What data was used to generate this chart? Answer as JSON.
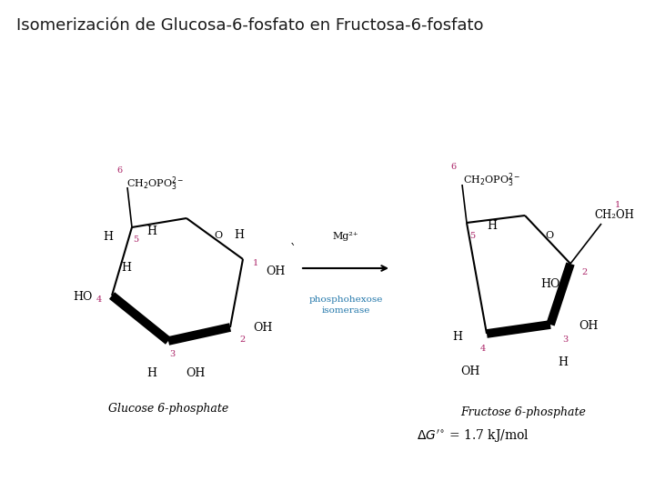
{
  "title": "Isomerización de Glucosa-6-fosfato en Fructosa-6-fosfato",
  "title_color": "#1a1a1a",
  "title_fontsize": 13,
  "bg_color": "#FFFFFF",
  "black": "#000000",
  "magenta": "#AA2266",
  "cyan_blue": "#2277AA",
  "glucose_label": "Glucose 6-phosphate",
  "fructose_label": "Fructose 6-phosphate",
  "delta_g": "ΔG'° = 1.7 kJ/mol",
  "fig_w": 7.2,
  "fig_h": 5.4
}
